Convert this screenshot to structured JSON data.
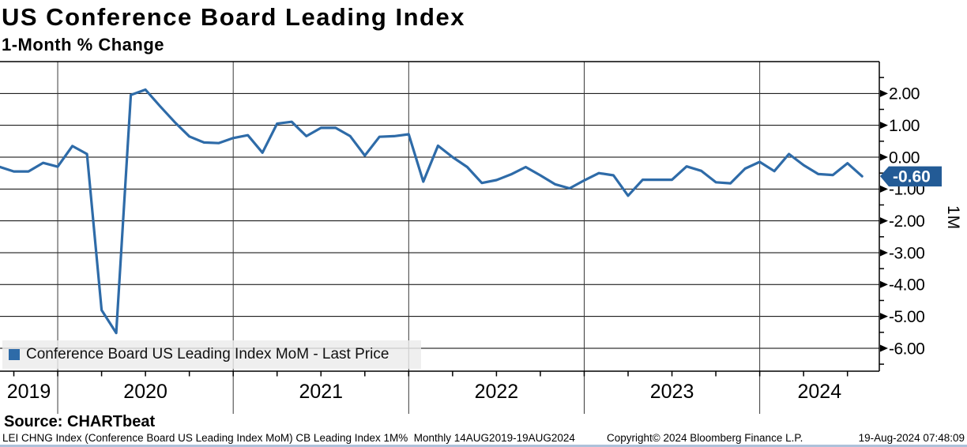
{
  "header": {
    "title": "US Conference Board Leading Index",
    "subtitle": "1-Month % Change"
  },
  "chart_data": {
    "type": "line",
    "title": "US Conference Board Leading Index",
    "subtitle": "1-Month % Change",
    "xlabel": "",
    "ylabel": "1M",
    "grid": true,
    "legend_position": "bottom-left",
    "ylim": [
      -6.72,
      3.0
    ],
    "yticks": [
      2,
      1,
      0,
      -1,
      -2,
      -3,
      -4,
      -5,
      -6
    ],
    "ytick_labels": [
      "2.00",
      "1.00",
      "0.00",
      "-1.00",
      "-2.00",
      "-3.00",
      "-4.00",
      "-5.00",
      "-6.00"
    ],
    "minor_ytick_step": 0.5,
    "xtick_years": [
      "2019",
      "2020",
      "2021",
      "2022",
      "2023",
      "2024"
    ],
    "axis_unit": "1M",
    "x": [
      "2019-09",
      "2019-10",
      "2019-11",
      "2019-12",
      "2020-01",
      "2020-02",
      "2020-03",
      "2020-04",
      "2020-05",
      "2020-06",
      "2020-07",
      "2020-08",
      "2020-09",
      "2020-10",
      "2020-11",
      "2020-12",
      "2021-01",
      "2021-02",
      "2021-03",
      "2021-04",
      "2021-05",
      "2021-06",
      "2021-07",
      "2021-08",
      "2021-09",
      "2021-10",
      "2021-11",
      "2021-12",
      "2022-01",
      "2022-02",
      "2022-03",
      "2022-04",
      "2022-05",
      "2022-06",
      "2022-07",
      "2022-08",
      "2022-09",
      "2022-10",
      "2022-11",
      "2022-12",
      "2023-01",
      "2023-02",
      "2023-03",
      "2023-04",
      "2023-05",
      "2023-06",
      "2023-07",
      "2023-08",
      "2023-09",
      "2023-10",
      "2023-11",
      "2023-12",
      "2024-01",
      "2024-02",
      "2024-03",
      "2024-04",
      "2024-05",
      "2024-06",
      "2024-07",
      "2024-08"
    ],
    "series": [
      {
        "name": "Conference Board US Leading Index MoM - Last Price",
        "color": "#2E6BA8",
        "values": [
          -0.3,
          -0.45,
          -0.45,
          -0.18,
          -0.3,
          0.35,
          0.1,
          -4.8,
          -5.52,
          1.95,
          2.12,
          1.6,
          1.1,
          0.65,
          0.46,
          0.44,
          0.6,
          0.69,
          0.14,
          1.05,
          1.11,
          0.66,
          0.92,
          0.92,
          0.66,
          0.05,
          0.64,
          0.66,
          0.72,
          -0.77,
          0.36,
          0.0,
          -0.31,
          -0.81,
          -0.72,
          -0.54,
          -0.31,
          -0.57,
          -0.85,
          -0.98,
          -0.73,
          -0.5,
          -0.57,
          -1.21,
          -0.71,
          -0.71,
          -0.71,
          -0.29,
          -0.43,
          -0.79,
          -0.82,
          -0.36,
          -0.15,
          -0.44,
          0.1,
          -0.25,
          -0.53,
          -0.56,
          -0.19,
          -0.6
        ]
      }
    ],
    "last_price": {
      "value": -0.6,
      "label": "-0.60",
      "color": "#235B96"
    }
  },
  "source": {
    "label": "Source: CHARTbeat"
  },
  "footer": {
    "left": "LEI CHNG Index (Conference Board US Leading Index MoM) CB Leading Index 1M%  Monthly 14AUG2019-19AUG2024",
    "center": "Copyright© 2024 Bloomberg Finance L.P.",
    "right": "19-Aug-2024 07:48:09"
  },
  "colors": {
    "bottom_strip": "#9FB6D4"
  }
}
